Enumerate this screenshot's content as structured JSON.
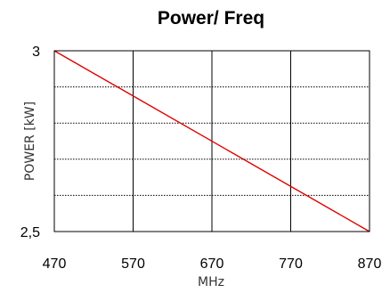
{
  "chart_data": {
    "type": "line",
    "title": "Power/ Freq",
    "xlabel": "MHz",
    "ylabel": "POWER [kW]",
    "xlim": [
      470,
      870
    ],
    "ylim": [
      2.5,
      3
    ],
    "x_ticks": [
      470,
      570,
      670,
      770,
      870
    ],
    "x_tick_labels": [
      "470",
      "570",
      "670",
      "770",
      "870"
    ],
    "y_tick_labels": [
      "3",
      "2,5"
    ],
    "y_tick_values": [
      3,
      2.5
    ],
    "y_gridlines": [
      2.6,
      2.7,
      2.8,
      2.9
    ],
    "grid": true,
    "series": [
      {
        "x": [
          470,
          870
        ],
        "y": [
          3,
          2.5
        ],
        "color": "#e00000"
      }
    ]
  }
}
